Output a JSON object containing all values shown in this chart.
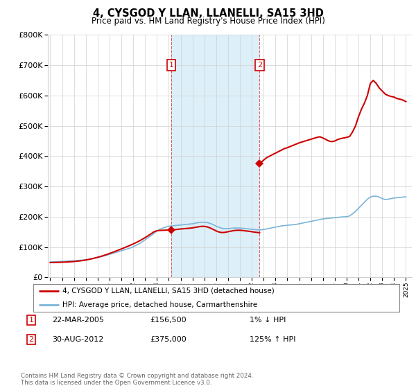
{
  "title": "4, CYSGOD Y LLAN, LLANELLI, SA15 3HD",
  "subtitle": "Price paid vs. HM Land Registry's House Price Index (HPI)",
  "legend_label_red": "4, CYSGOD Y LLAN, LLANELLI, SA15 3HD (detached house)",
  "legend_label_blue": "HPI: Average price, detached house, Carmarthenshire",
  "table_rows": [
    {
      "num": "1",
      "date": "22-MAR-2005",
      "price": "£156,500",
      "change": "1% ↓ HPI"
    },
    {
      "num": "2",
      "date": "30-AUG-2012",
      "price": "£375,000",
      "change": "125% ↑ HPI"
    }
  ],
  "footnote": "Contains HM Land Registry data © Crown copyright and database right 2024.\nThis data is licensed under the Open Government Licence v3.0.",
  "sale1_x": 2005.22,
  "sale1_y": 156500,
  "sale2_x": 2012.66,
  "sale2_y": 375000,
  "hpi_color": "#7ab4d8",
  "sale_color": "#cc0000",
  "ylim": [
    0,
    800000
  ],
  "xlim_start": 1994.8,
  "xlim_end": 2025.5,
  "background_color": "#ffffff",
  "grid_color": "#d0d0d0",
  "hpi_x": [
    1995.0,
    1995.25,
    1995.5,
    1995.75,
    1996.0,
    1996.25,
    1996.5,
    1996.75,
    1997.0,
    1997.25,
    1997.5,
    1997.75,
    1998.0,
    1998.25,
    1998.5,
    1998.75,
    1999.0,
    1999.25,
    1999.5,
    1999.75,
    2000.0,
    2000.25,
    2000.5,
    2000.75,
    2001.0,
    2001.25,
    2001.5,
    2001.75,
    2002.0,
    2002.25,
    2002.5,
    2002.75,
    2003.0,
    2003.25,
    2003.5,
    2003.75,
    2004.0,
    2004.25,
    2004.5,
    2004.75,
    2005.0,
    2005.25,
    2005.5,
    2005.75,
    2006.0,
    2006.25,
    2006.5,
    2006.75,
    2007.0,
    2007.25,
    2007.5,
    2007.75,
    2008.0,
    2008.25,
    2008.5,
    2008.75,
    2009.0,
    2009.25,
    2009.5,
    2009.75,
    2010.0,
    2010.25,
    2010.5,
    2010.75,
    2011.0,
    2011.25,
    2011.5,
    2011.75,
    2012.0,
    2012.25,
    2012.5,
    2012.75,
    2013.0,
    2013.25,
    2013.5,
    2013.75,
    2014.0,
    2014.25,
    2014.5,
    2014.75,
    2015.0,
    2015.25,
    2015.5,
    2015.75,
    2016.0,
    2016.25,
    2016.5,
    2016.75,
    2017.0,
    2017.25,
    2017.5,
    2017.75,
    2018.0,
    2018.25,
    2018.5,
    2018.75,
    2019.0,
    2019.25,
    2019.5,
    2019.75,
    2020.0,
    2020.25,
    2020.5,
    2020.75,
    2021.0,
    2021.25,
    2021.5,
    2021.75,
    2022.0,
    2022.25,
    2022.5,
    2022.75,
    2023.0,
    2023.25,
    2023.5,
    2023.75,
    2024.0,
    2024.25,
    2024.5,
    2024.75,
    2025.0
  ],
  "hpi_y": [
    51000,
    51500,
    52000,
    52500,
    53000,
    53500,
    54000,
    54500,
    55000,
    55800,
    56600,
    57400,
    58500,
    60000,
    62000,
    64000,
    66000,
    68000,
    70500,
    73000,
    76000,
    79000,
    82000,
    85000,
    88000,
    91000,
    94000,
    97000,
    101000,
    106000,
    111000,
    117000,
    124000,
    131000,
    138000,
    145000,
    153000,
    159000,
    163000,
    166000,
    169000,
    170000,
    171000,
    172000,
    173000,
    174000,
    175000,
    176000,
    177000,
    179000,
    181000,
    182000,
    182000,
    181000,
    178000,
    174000,
    169000,
    165000,
    162000,
    161000,
    161000,
    162000,
    163000,
    163000,
    163000,
    162000,
    161000,
    160000,
    159000,
    158000,
    157000,
    157000,
    158000,
    160000,
    162000,
    164000,
    166000,
    168000,
    170000,
    171000,
    172000,
    173000,
    174000,
    175000,
    177000,
    179000,
    181000,
    183000,
    185000,
    187000,
    189000,
    191000,
    193000,
    194000,
    195000,
    196000,
    197000,
    198000,
    199000,
    200000,
    200000,
    203000,
    210000,
    218000,
    228000,
    238000,
    248000,
    258000,
    265000,
    268000,
    268000,
    265000,
    260000,
    257000,
    258000,
    260000,
    262000,
    263000,
    264000,
    265000,
    266000
  ],
  "hpi_x_from_sale1": [
    2005.22,
    2005.5,
    2005.75,
    2006.0,
    2006.25,
    2006.5,
    2006.75,
    2007.0,
    2007.25,
    2007.5,
    2007.75,
    2008.0,
    2008.25,
    2008.5,
    2008.75,
    2009.0,
    2009.25,
    2009.5,
    2009.75,
    2010.0,
    2010.25,
    2010.5,
    2010.75,
    2011.0,
    2011.25,
    2011.5,
    2011.75,
    2012.0,
    2012.25,
    2012.5,
    2012.66
  ],
  "hpi_y_from_sale1": [
    156500,
    157600,
    158700,
    159800,
    160600,
    161500,
    162300,
    163500,
    165200,
    167000,
    168400,
    168400,
    166600,
    163000,
    158400,
    153200,
    149600,
    148000,
    148800,
    150800,
    152700,
    154600,
    155600,
    155600,
    154600,
    153500,
    152300,
    150800,
    149300,
    148200,
    147200
  ],
  "red_x": [
    1995.0,
    1995.25,
    1995.5,
    1995.75,
    1996.0,
    1996.25,
    1996.5,
    1996.75,
    1997.0,
    1997.25,
    1997.5,
    1997.75,
    1998.0,
    1998.25,
    1998.5,
    1998.75,
    1999.0,
    1999.25,
    1999.5,
    1999.75,
    2000.0,
    2000.25,
    2000.5,
    2000.75,
    2001.0,
    2001.25,
    2001.5,
    2001.75,
    2002.0,
    2002.25,
    2002.5,
    2002.75,
    2003.0,
    2003.25,
    2003.5,
    2003.75,
    2004.0,
    2004.25,
    2004.5,
    2004.75,
    2005.0,
    2005.22
  ],
  "red_y": [
    49000,
    49200,
    49500,
    49800,
    50200,
    50600,
    51100,
    51700,
    52400,
    53400,
    54500,
    55800,
    57400,
    59300,
    61400,
    63800,
    66400,
    69200,
    72200,
    75500,
    79000,
    82600,
    86300,
    90100,
    94000,
    98000,
    102000,
    106100,
    110400,
    115000,
    120000,
    125400,
    131200,
    137400,
    143900,
    150600,
    154000,
    155000,
    155500,
    156000,
    156300,
    156500
  ],
  "red_x_from_sale2": [
    2012.66,
    2012.75,
    2013.0,
    2013.25,
    2013.5,
    2013.75,
    2014.0,
    2014.25,
    2014.5,
    2014.75,
    2015.0,
    2015.25,
    2015.5,
    2015.75,
    2016.0,
    2016.25,
    2016.5,
    2016.75,
    2017.0,
    2017.25,
    2017.5,
    2017.75,
    2018.0,
    2018.25,
    2018.5,
    2018.75,
    2019.0,
    2019.25,
    2019.5,
    2019.75,
    2020.0,
    2020.25,
    2020.5,
    2020.75,
    2021.0,
    2021.25,
    2021.5,
    2021.75,
    2022.0,
    2022.25,
    2022.5,
    2022.75,
    2023.0,
    2023.25,
    2023.5,
    2023.75,
    2024.0,
    2024.25,
    2024.5,
    2024.75,
    2025.0
  ],
  "red_y_from_sale2": [
    375000,
    378000,
    387000,
    395000,
    400000,
    405000,
    410000,
    415000,
    420000,
    425000,
    428000,
    432000,
    436000,
    440000,
    444000,
    447000,
    450000,
    453000,
    456000,
    459000,
    462000,
    464000,
    460000,
    455000,
    450000,
    448000,
    450000,
    455000,
    458000,
    460000,
    462000,
    465000,
    480000,
    500000,
    530000,
    555000,
    575000,
    600000,
    640000,
    650000,
    640000,
    625000,
    615000,
    605000,
    600000,
    597000,
    595000,
    590000,
    588000,
    585000,
    580000
  ]
}
